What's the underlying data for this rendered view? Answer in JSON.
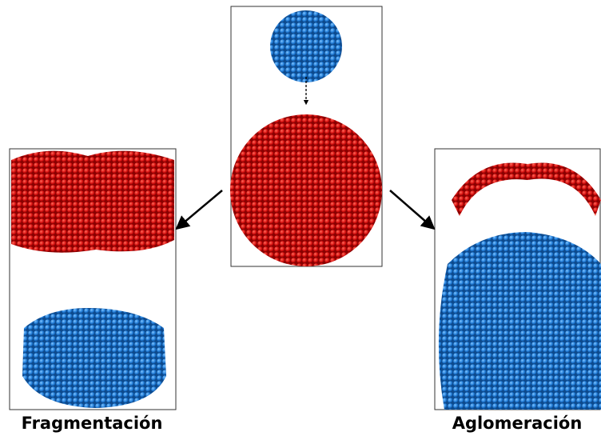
{
  "labels": {
    "left": "Fragmentación",
    "right": "Aglomeración"
  }
}
